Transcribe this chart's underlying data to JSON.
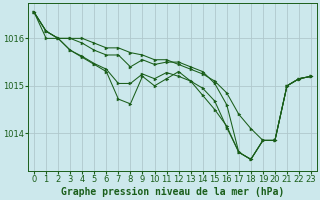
{
  "title": "Graphe pression niveau de la mer (hPa)",
  "xlabel_values": [
    0,
    1,
    2,
    3,
    4,
    5,
    6,
    7,
    8,
    9,
    10,
    11,
    12,
    13,
    14,
    15,
    16,
    17,
    18,
    19,
    20,
    21,
    22,
    23
  ],
  "yticks": [
    1014,
    1015,
    1016
  ],
  "ylim": [
    1013.2,
    1016.75
  ],
  "xlim": [
    -0.5,
    23.5
  ],
  "background_color": "#cce8ec",
  "line_color": "#1a5e1a",
  "grid_color": "#b0c8cc",
  "series": [
    [
      1016.55,
      1016.15,
      1016.0,
      1015.75,
      1015.6,
      1015.45,
      1015.3,
      1014.72,
      1014.62,
      1015.2,
      1015.0,
      1015.15,
      1015.3,
      1015.1,
      1014.8,
      1014.5,
      1014.15,
      1013.6,
      1013.45,
      1013.85,
      1013.85,
      1015.0,
      1015.15,
      1015.2
    ],
    [
      1016.55,
      1016.15,
      1016.0,
      1015.75,
      1015.62,
      1015.47,
      1015.35,
      1015.05,
      1015.05,
      1015.25,
      1015.15,
      1015.28,
      1015.2,
      1015.1,
      1014.95,
      1014.68,
      1014.12,
      1013.6,
      1013.45,
      1013.85,
      1013.85,
      1015.0,
      1015.15,
      1015.2
    ],
    [
      1016.55,
      1016.15,
      1016.0,
      1016.0,
      1015.9,
      1015.75,
      1015.65,
      1015.65,
      1015.4,
      1015.55,
      1015.45,
      1015.5,
      1015.5,
      1015.4,
      1015.3,
      1015.05,
      1014.6,
      1013.6,
      1013.45,
      1013.85,
      1013.85,
      1015.0,
      1015.15,
      1015.2
    ],
    [
      1016.55,
      1016.0,
      1016.0,
      1016.0,
      1016.0,
      1015.9,
      1015.8,
      1015.8,
      1015.7,
      1015.65,
      1015.55,
      1015.55,
      1015.45,
      1015.35,
      1015.25,
      1015.1,
      1014.85,
      1014.4,
      1014.1,
      1013.85,
      1013.85,
      1015.0,
      1015.15,
      1015.2
    ]
  ],
  "title_fontsize": 7,
  "tick_fontsize": 6,
  "markersize": 2.2,
  "linewidth": 0.75
}
